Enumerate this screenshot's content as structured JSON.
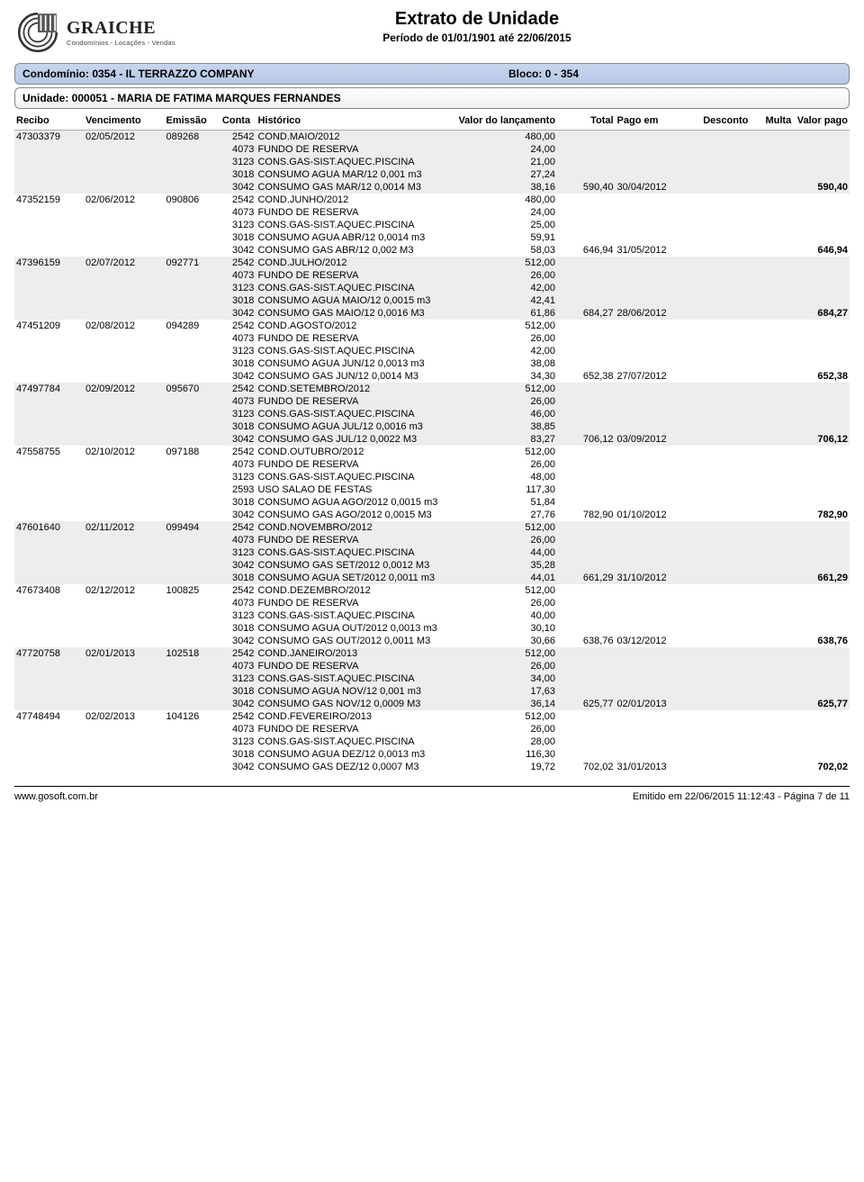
{
  "logo": {
    "brand": "GRAICHE",
    "tagline": "Condomínios - Locações - Vendas"
  },
  "title": "Extrato de Unidade",
  "period": "Período de 01/01/1901 até 22/06/2015",
  "condominio_label": "Condomínio: 0354 - IL TERRAZZO COMPANY",
  "bloco_label": "Bloco: 0 - 354",
  "unidade_label": "Unidade: 000051 - MARIA DE FATIMA MARQUES FERNANDES",
  "headers": {
    "recibo": "Recibo",
    "vencimento": "Vencimento",
    "emissao": "Emissão",
    "conta": "Conta",
    "historico": "Histórico",
    "valor_lanc": "Valor do lançamento",
    "total": "Total",
    "pago_em": "Pago em",
    "desconto": "Desconto",
    "multa": "Multa",
    "valor_pago": "Valor pago"
  },
  "groups": [
    {
      "recibo": "47303379",
      "venc": "02/05/2012",
      "emiss": "089268",
      "total": "590,40",
      "pago_em": "30/04/2012",
      "desconto": "",
      "multa": "",
      "valor_pago": "590,40",
      "lines": [
        {
          "conta": "2542",
          "hist": "COND.MAIO/2012",
          "valor": "480,00"
        },
        {
          "conta": "4073",
          "hist": "FUNDO DE RESERVA",
          "valor": "24,00"
        },
        {
          "conta": "3123",
          "hist": "CONS.GAS-SIST.AQUEC.PISCINA",
          "valor": "21,00"
        },
        {
          "conta": "3018",
          "hist": "CONSUMO AGUA MAR/12 0,001 m3",
          "valor": "27,24"
        },
        {
          "conta": "3042",
          "hist": "CONSUMO GAS MAR/12 0,0014 M3",
          "valor": "38,16"
        }
      ]
    },
    {
      "recibo": "47352159",
      "venc": "02/06/2012",
      "emiss": "090806",
      "total": "646,94",
      "pago_em": "31/05/2012",
      "desconto": "",
      "multa": "",
      "valor_pago": "646,94",
      "lines": [
        {
          "conta": "2542",
          "hist": "COND.JUNHO/2012",
          "valor": "480,00"
        },
        {
          "conta": "4073",
          "hist": "FUNDO DE RESERVA",
          "valor": "24,00"
        },
        {
          "conta": "3123",
          "hist": "CONS.GAS-SIST.AQUEC.PISCINA",
          "valor": "25,00"
        },
        {
          "conta": "3018",
          "hist": "CONSUMO AGUA ABR/12 0,0014 m3",
          "valor": "59,91"
        },
        {
          "conta": "3042",
          "hist": "CONSUMO GAS ABR/12 0,002 M3",
          "valor": "58,03"
        }
      ]
    },
    {
      "recibo": "47396159",
      "venc": "02/07/2012",
      "emiss": "092771",
      "total": "684,27",
      "pago_em": "28/06/2012",
      "desconto": "",
      "multa": "",
      "valor_pago": "684,27",
      "lines": [
        {
          "conta": "2542",
          "hist": "COND.JULHO/2012",
          "valor": "512,00"
        },
        {
          "conta": "4073",
          "hist": "FUNDO DE RESERVA",
          "valor": "26,00"
        },
        {
          "conta": "3123",
          "hist": "CONS.GAS-SIST.AQUEC.PISCINA",
          "valor": "42,00"
        },
        {
          "conta": "3018",
          "hist": "CONSUMO AGUA MAIO/12 0,0015 m3",
          "valor": "42,41"
        },
        {
          "conta": "3042",
          "hist": "CONSUMO GAS MAIO/12 0,0016 M3",
          "valor": "61,86"
        }
      ]
    },
    {
      "recibo": "47451209",
      "venc": "02/08/2012",
      "emiss": "094289",
      "total": "652,38",
      "pago_em": "27/07/2012",
      "desconto": "",
      "multa": "",
      "valor_pago": "652,38",
      "lines": [
        {
          "conta": "2542",
          "hist": "COND.AGOSTO/2012",
          "valor": "512,00"
        },
        {
          "conta": "4073",
          "hist": "FUNDO DE RESERVA",
          "valor": "26,00"
        },
        {
          "conta": "3123",
          "hist": "CONS.GAS-SIST.AQUEC.PISCINA",
          "valor": "42,00"
        },
        {
          "conta": "3018",
          "hist": "CONSUMO AGUA JUN/12 0,0013 m3",
          "valor": "38,08"
        },
        {
          "conta": "3042",
          "hist": "CONSUMO GAS JUN/12 0,0014 M3",
          "valor": "34,30"
        }
      ]
    },
    {
      "recibo": "47497784",
      "venc": "02/09/2012",
      "emiss": "095670",
      "total": "706,12",
      "pago_em": "03/09/2012",
      "desconto": "",
      "multa": "",
      "valor_pago": "706,12",
      "lines": [
        {
          "conta": "2542",
          "hist": "COND.SETEMBRO/2012",
          "valor": "512,00"
        },
        {
          "conta": "4073",
          "hist": "FUNDO DE RESERVA",
          "valor": "26,00"
        },
        {
          "conta": "3123",
          "hist": "CONS.GAS-SIST.AQUEC.PISCINA",
          "valor": "46,00"
        },
        {
          "conta": "3018",
          "hist": "CONSUMO AGUA JUL/12 0,0016 m3",
          "valor": "38,85"
        },
        {
          "conta": "3042",
          "hist": "CONSUMO GAS JUL/12 0,0022 M3",
          "valor": "83,27"
        }
      ]
    },
    {
      "recibo": "47558755",
      "venc": "02/10/2012",
      "emiss": "097188",
      "total": "782,90",
      "pago_em": "01/10/2012",
      "desconto": "",
      "multa": "",
      "valor_pago": "782,90",
      "lines": [
        {
          "conta": "2542",
          "hist": "COND.OUTUBRO/2012",
          "valor": "512,00"
        },
        {
          "conta": "4073",
          "hist": "FUNDO DE RESERVA",
          "valor": "26,00"
        },
        {
          "conta": "3123",
          "hist": "CONS.GAS-SIST.AQUEC.PISCINA",
          "valor": "48,00"
        },
        {
          "conta": "2593",
          "hist": "USO SALAO DE FESTAS",
          "valor": "117,30"
        },
        {
          "conta": "3018",
          "hist": "CONSUMO AGUA AGO/2012 0,0015 m3",
          "valor": "51,84"
        },
        {
          "conta": "3042",
          "hist": "CONSUMO GAS AGO/2012 0,0015 M3",
          "valor": "27,76"
        }
      ]
    },
    {
      "recibo": "47601640",
      "venc": "02/11/2012",
      "emiss": "099494",
      "total": "661,29",
      "pago_em": "31/10/2012",
      "desconto": "",
      "multa": "",
      "valor_pago": "661,29",
      "lines": [
        {
          "conta": "2542",
          "hist": "COND.NOVEMBRO/2012",
          "valor": "512,00"
        },
        {
          "conta": "4073",
          "hist": "FUNDO DE RESERVA",
          "valor": "26,00"
        },
        {
          "conta": "3123",
          "hist": "CONS.GAS-SIST.AQUEC.PISCINA",
          "valor": "44,00"
        },
        {
          "conta": "3042",
          "hist": "CONSUMO GAS SET/2012 0,0012 M3",
          "valor": "35,28"
        },
        {
          "conta": "3018",
          "hist": "CONSUMO AGUA SET/2012 0,0011 m3",
          "valor": "44,01"
        }
      ]
    },
    {
      "recibo": "47673408",
      "venc": "02/12/2012",
      "emiss": "100825",
      "total": "638,76",
      "pago_em": "03/12/2012",
      "desconto": "",
      "multa": "",
      "valor_pago": "638,76",
      "lines": [
        {
          "conta": "2542",
          "hist": "COND.DEZEMBRO/2012",
          "valor": "512,00"
        },
        {
          "conta": "4073",
          "hist": "FUNDO DE RESERVA",
          "valor": "26,00"
        },
        {
          "conta": "3123",
          "hist": "CONS.GAS-SIST.AQUEC.PISCINA",
          "valor": "40,00"
        },
        {
          "conta": "3018",
          "hist": "CONSUMO AGUA OUT/2012 0,0013 m3",
          "valor": "30,10"
        },
        {
          "conta": "3042",
          "hist": "CONSUMO GAS OUT/2012 0,0011 M3",
          "valor": "30,66"
        }
      ]
    },
    {
      "recibo": "47720758",
      "venc": "02/01/2013",
      "emiss": "102518",
      "total": "625,77",
      "pago_em": "02/01/2013",
      "desconto": "",
      "multa": "",
      "valor_pago": "625,77",
      "lines": [
        {
          "conta": "2542",
          "hist": "COND.JANEIRO/2013",
          "valor": "512,00"
        },
        {
          "conta": "4073",
          "hist": "FUNDO DE RESERVA",
          "valor": "26,00"
        },
        {
          "conta": "3123",
          "hist": "CONS.GAS-SIST.AQUEC.PISCINA",
          "valor": "34,00"
        },
        {
          "conta": "3018",
          "hist": "CONSUMO AGUA NOV/12 0,001 m3",
          "valor": "17,63"
        },
        {
          "conta": "3042",
          "hist": "CONSUMO GAS NOV/12 0,0009 M3",
          "valor": "36,14"
        }
      ]
    },
    {
      "recibo": "47748494",
      "venc": "02/02/2013",
      "emiss": "104126",
      "total": "702,02",
      "pago_em": "31/01/2013",
      "desconto": "",
      "multa": "",
      "valor_pago": "702,02",
      "lines": [
        {
          "conta": "2542",
          "hist": "COND.FEVEREIRO/2013",
          "valor": "512,00"
        },
        {
          "conta": "4073",
          "hist": "FUNDO DE RESERVA",
          "valor": "26,00"
        },
        {
          "conta": "3123",
          "hist": "CONS.GAS-SIST.AQUEC.PISCINA",
          "valor": "28,00"
        },
        {
          "conta": "3018",
          "hist": "CONSUMO AGUA DEZ/12 0,0013 m3",
          "valor": "116,30"
        },
        {
          "conta": "3042",
          "hist": "CONSUMO GAS DEZ/12 0,0007 M3",
          "valor": "19,72"
        }
      ]
    }
  ],
  "footer": {
    "left": "www.gosoft.com.br",
    "right": "Emitido em 22/06/2015 11:12:43 - Página 7 de 11"
  }
}
